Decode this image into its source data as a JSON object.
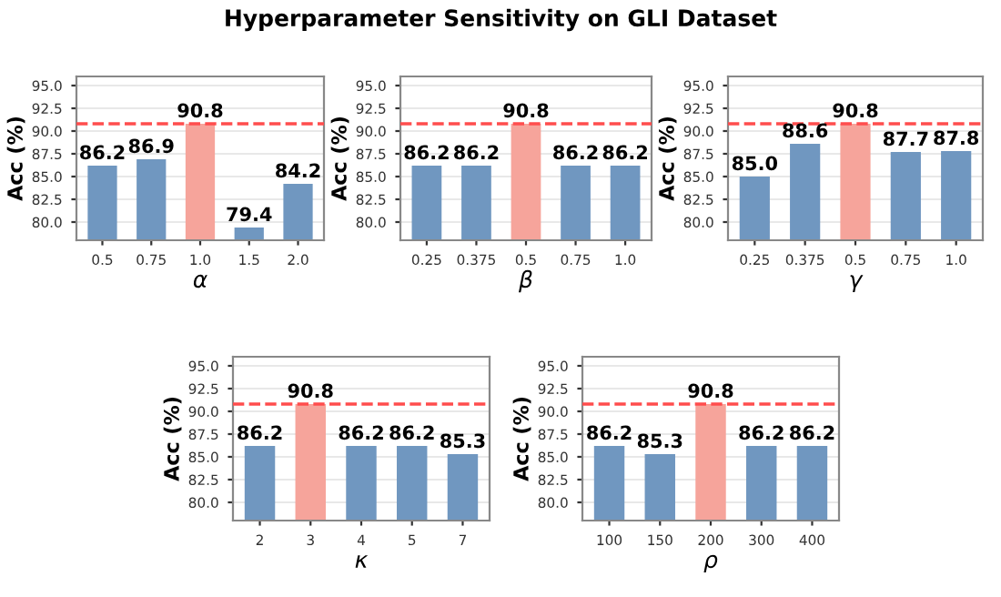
{
  "chart_data": [
    {
      "type": "bar",
      "title": "Hyperparameter Sensitivity on GLI Dataset",
      "xlabel": "α",
      "ylabel": "Acc (%)",
      "categories": [
        "0.5",
        "0.75",
        "1.0",
        "1.5",
        "2.0"
      ],
      "values": [
        86.2,
        86.9,
        90.8,
        79.4,
        84.2
      ],
      "colors": [
        "#7097c0",
        "#7097c0",
        "#f6a49b",
        "#7097c0",
        "#7097c0"
      ],
      "ylim": [
        78,
        96
      ],
      "yticks": [
        {
          "value": 80,
          "label": "80.0"
        },
        {
          "value": 82.5,
          "label": "82.5"
        },
        {
          "value": 85,
          "label": "85.0"
        },
        {
          "value": 87.5,
          "label": "87.5"
        },
        {
          "value": 90,
          "label": "90.0"
        },
        {
          "value": 92.5,
          "label": "92.5"
        },
        {
          "value": 95,
          "label": "95.0"
        }
      ],
      "grid": "y",
      "data_labels": true,
      "ref_lines": [
        {
          "axis": "y",
          "value": 90.8,
          "color": "#ff4d4d",
          "line_style": "dashed"
        }
      ]
    },
    {
      "type": "bar",
      "xlabel": "β",
      "ylabel": "Acc (%)",
      "categories": [
        "0.25",
        "0.375",
        "0.5",
        "0.75",
        "1.0"
      ],
      "values": [
        86.2,
        86.2,
        90.8,
        86.2,
        86.2
      ],
      "colors": [
        "#7097c0",
        "#7097c0",
        "#f6a49b",
        "#7097c0",
        "#7097c0"
      ],
      "ylim": [
        78,
        96
      ],
      "yticks": [
        {
          "value": 80,
          "label": "80.0"
        },
        {
          "value": 82.5,
          "label": "82.5"
        },
        {
          "value": 85,
          "label": "85.0"
        },
        {
          "value": 87.5,
          "label": "87.5"
        },
        {
          "value": 90,
          "label": "90.0"
        },
        {
          "value": 92.5,
          "label": "92.5"
        },
        {
          "value": 95,
          "label": "95.0"
        }
      ],
      "grid": "y",
      "data_labels": true,
      "ref_lines": [
        {
          "axis": "y",
          "value": 90.8,
          "color": "#ff4d4d",
          "line_style": "dashed"
        }
      ]
    },
    {
      "type": "bar",
      "xlabel": "γ",
      "ylabel": "Acc (%)",
      "categories": [
        "0.25",
        "0.375",
        "0.5",
        "0.75",
        "1.0"
      ],
      "values": [
        85.0,
        88.6,
        90.8,
        87.7,
        87.8
      ],
      "value_labels": [
        "85.0",
        "88.6",
        "90.8",
        "87.7",
        "87.8"
      ],
      "colors": [
        "#7097c0",
        "#7097c0",
        "#f6a49b",
        "#7097c0",
        "#7097c0"
      ],
      "ylim": [
        78,
        96
      ],
      "yticks": [
        {
          "value": 80,
          "label": "80.0"
        },
        {
          "value": 82.5,
          "label": "82.5"
        },
        {
          "value": 85,
          "label": "85.0"
        },
        {
          "value": 87.5,
          "label": "87.5"
        },
        {
          "value": 90,
          "label": "90.0"
        },
        {
          "value": 92.5,
          "label": "92.5"
        },
        {
          "value": 95,
          "label": "95.0"
        }
      ],
      "grid": "y",
      "data_labels": true,
      "ref_lines": [
        {
          "axis": "y",
          "value": 90.8,
          "color": "#ff4d4d",
          "line_style": "dashed"
        }
      ]
    },
    {
      "type": "bar",
      "xlabel": "κ",
      "ylabel": "Acc (%)",
      "categories": [
        "2",
        "3",
        "4",
        "5",
        "7"
      ],
      "values": [
        86.2,
        90.8,
        86.2,
        86.2,
        85.3
      ],
      "colors": [
        "#7097c0",
        "#f6a49b",
        "#7097c0",
        "#7097c0",
        "#7097c0"
      ],
      "ylim": [
        78,
        96
      ],
      "yticks": [
        {
          "value": 80,
          "label": "80.0"
        },
        {
          "value": 82.5,
          "label": "82.5"
        },
        {
          "value": 85,
          "label": "85.0"
        },
        {
          "value": 87.5,
          "label": "87.5"
        },
        {
          "value": 90,
          "label": "90.0"
        },
        {
          "value": 92.5,
          "label": "92.5"
        },
        {
          "value": 95,
          "label": "95.0"
        }
      ],
      "grid": "y",
      "data_labels": true,
      "ref_lines": [
        {
          "axis": "y",
          "value": 90.8,
          "color": "#ff4d4d",
          "line_style": "dashed"
        }
      ]
    },
    {
      "type": "bar",
      "xlabel": "ρ",
      "ylabel": "Acc (%)",
      "categories": [
        "100",
        "150",
        "200",
        "300",
        "400"
      ],
      "values": [
        86.2,
        85.3,
        90.8,
        86.2,
        86.2
      ],
      "colors": [
        "#7097c0",
        "#7097c0",
        "#f6a49b",
        "#7097c0",
        "#7097c0"
      ],
      "ylim": [
        78,
        96
      ],
      "yticks": [
        {
          "value": 80,
          "label": "80.0"
        },
        {
          "value": 82.5,
          "label": "82.5"
        },
        {
          "value": 85,
          "label": "85.0"
        },
        {
          "value": 87.5,
          "label": "87.5"
        },
        {
          "value": 90,
          "label": "90.0"
        },
        {
          "value": 92.5,
          "label": "92.5"
        },
        {
          "value": 95,
          "label": "95.0"
        }
      ],
      "grid": "y",
      "data_labels": true,
      "ref_lines": [
        {
          "axis": "y",
          "value": 90.8,
          "color": "#ff4d4d",
          "line_style": "dashed"
        }
      ]
    }
  ]
}
